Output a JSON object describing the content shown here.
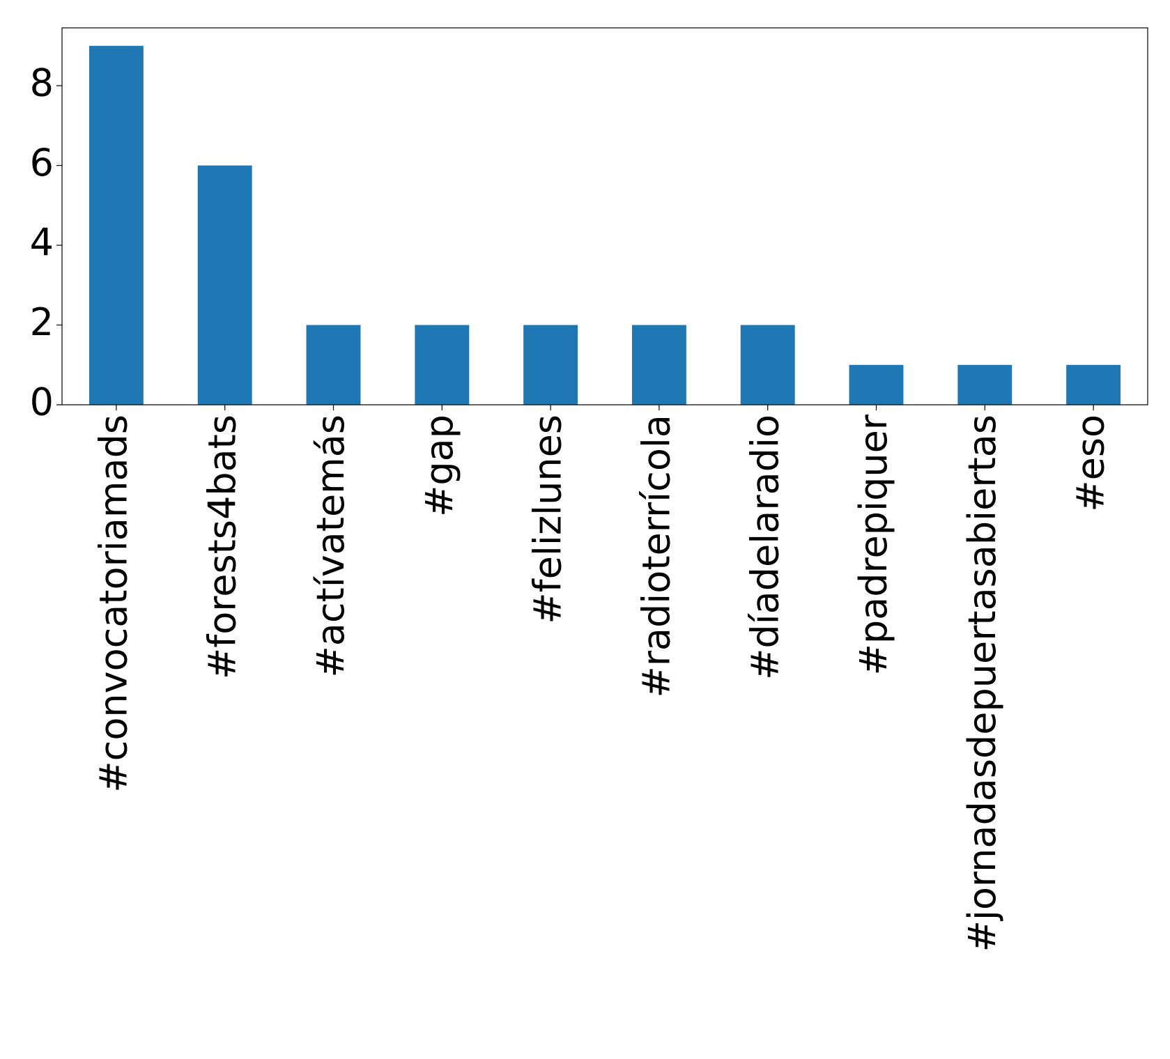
{
  "chart_data": {
    "type": "bar",
    "categories": [
      "#convocatoriamads",
      "#forests4bats",
      "#actívatemás",
      "#gap",
      "#felizlunes",
      "#radioterrícola",
      "#díadelaradio",
      "#padrepiquer",
      "#jornadasdepuertasabiertas",
      "#eso"
    ],
    "values": [
      9,
      6,
      2,
      2,
      2,
      2,
      2,
      1,
      1,
      1
    ],
    "color": "#1f77b4",
    "ylim": [
      0,
      9.45
    ],
    "yticks": [
      0,
      2,
      4,
      6,
      8
    ],
    "grid": false
  }
}
